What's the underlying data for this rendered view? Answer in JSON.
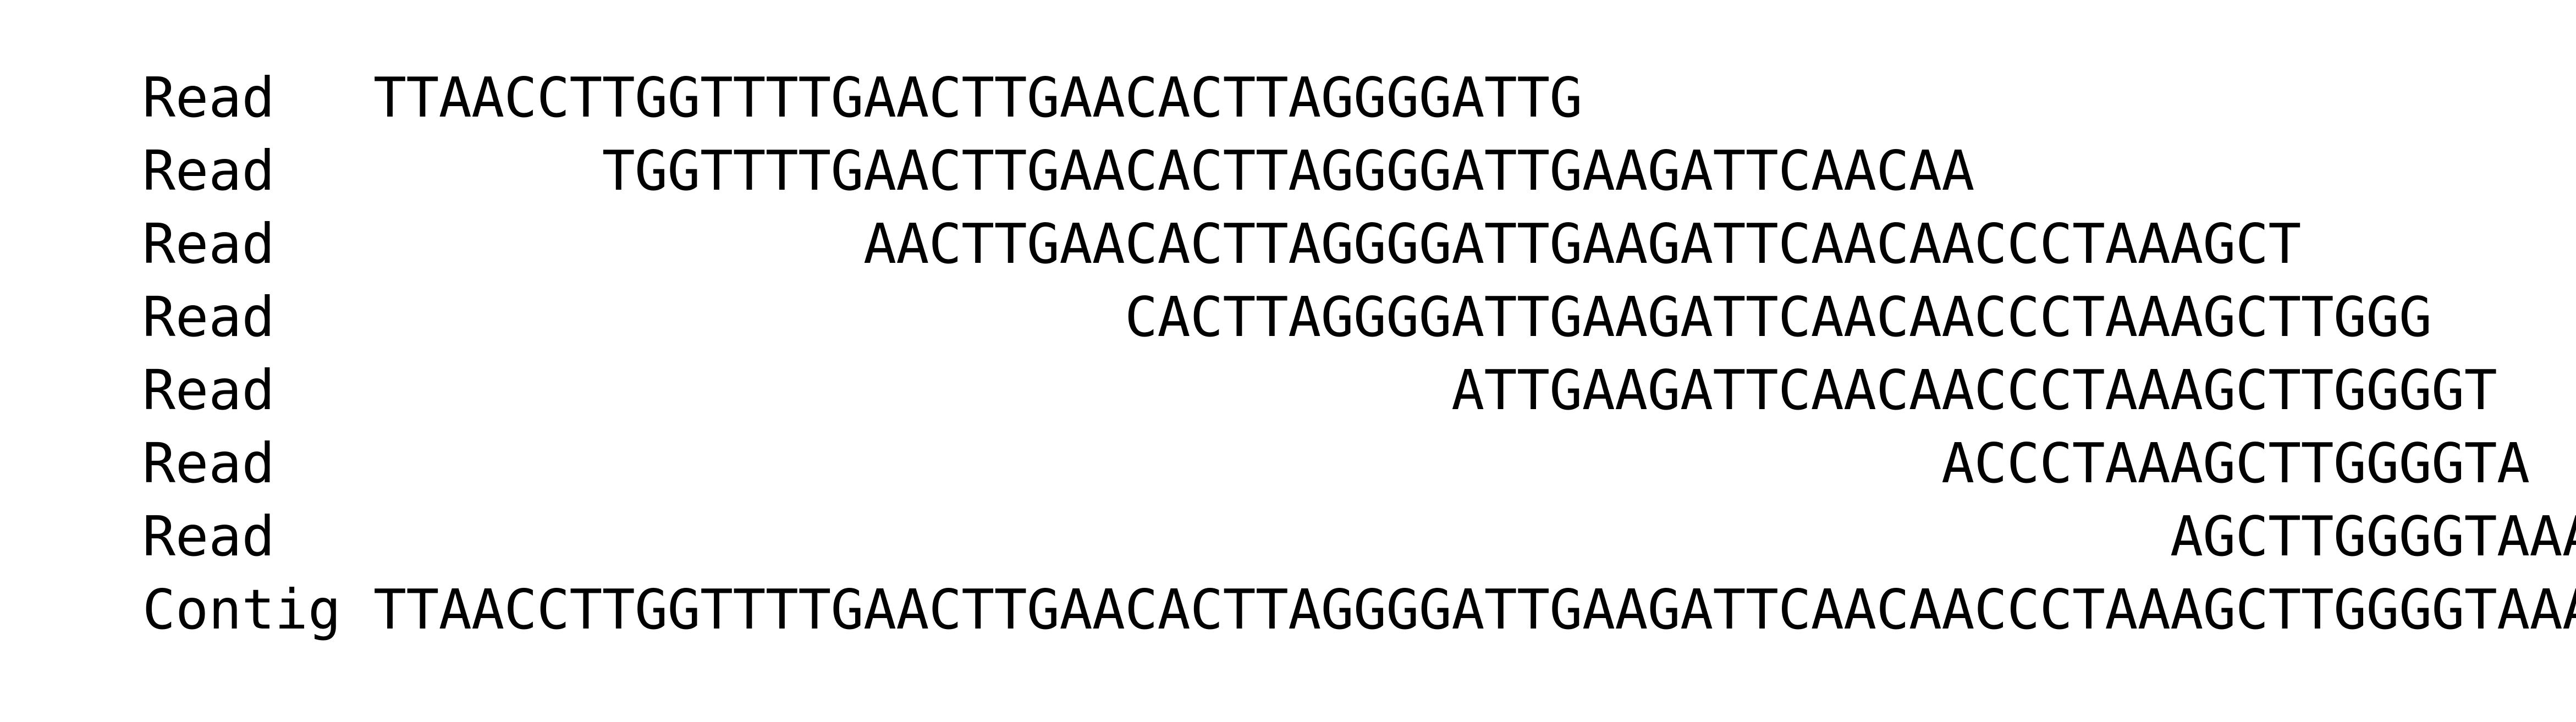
{
  "alignment": {
    "rows": [
      {
        "label": "Read",
        "offset": 0,
        "sequence": "TTAACCTTGGTTTTGAACTTGAACACTTAGGGGATTG"
      },
      {
        "label": "Read",
        "offset": 7,
        "sequence": "TGGTTTTGAACTTGAACACTTAGGGGATTGAAGATTCAACAA"
      },
      {
        "label": "Read",
        "offset": 15,
        "sequence": "AACTTGAACACTTAGGGGATTGAAGATTCAACAACCCTAAAGCT"
      },
      {
        "label": "Read",
        "offset": 23,
        "sequence": "CACTTAGGGGATTGAAGATTCAACAACCCTAAAGCTTGGG"
      },
      {
        "label": "Read",
        "offset": 33,
        "sequence": "ATTGAAGATTCAACAACCCTAAAGCTTGGGGT"
      },
      {
        "label": "Read",
        "offset": 48,
        "sequence": "ACCCTAAAGCTTGGGGTA"
      },
      {
        "label": "Read",
        "offset": 55,
        "sequence": "AGCTTGGGGTAAAAC"
      },
      {
        "label": "Contig",
        "offset": 0,
        "sequence": "TTAACCTTGGTTTTGAACTTGAACACTTAGGGGATTGAAGATTCAACAACCCTAAAGCTTGGGGTAAAAC"
      }
    ]
  }
}
